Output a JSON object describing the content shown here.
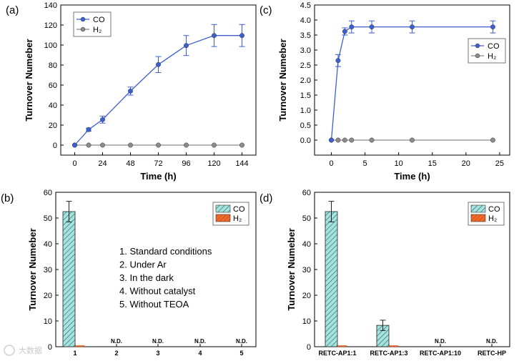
{
  "chart_data": [
    {
      "panel": "(a)",
      "type": "line",
      "xlabel": "Time (h)",
      "ylabel": "Turnover Numeber",
      "xlim": [
        -12,
        156
      ],
      "ylim": [
        -10,
        140
      ],
      "xticks": [
        0,
        24,
        48,
        72,
        96,
        120,
        144
      ],
      "yticks": [
        0,
        20,
        40,
        60,
        80,
        100,
        120,
        140
      ],
      "legend_position": "top-left",
      "grid": false,
      "series": [
        {
          "name": "CO",
          "color": "#3c5fd1",
          "x": [
            0,
            12,
            24,
            48,
            72,
            96,
            120,
            144
          ],
          "y": [
            0,
            15.5,
            25.5,
            54,
            80.5,
            99.5,
            109.5,
            109.5
          ],
          "err": [
            0,
            1.5,
            3.5,
            4,
            8,
            10,
            11,
            11
          ]
        },
        {
          "name": "H₂",
          "color": "#8c8c8c",
          "x": [
            0,
            12,
            24,
            48,
            72,
            96,
            120,
            144
          ],
          "y": [
            0,
            0,
            0,
            0,
            0,
            0,
            0,
            0
          ]
        }
      ]
    },
    {
      "panel": "(b)",
      "type": "bar",
      "xlabel": "",
      "ylabel": "Turnover Numeber",
      "ylim": [
        0,
        60
      ],
      "yticks": [
        0,
        10,
        20,
        30,
        40,
        50,
        60
      ],
      "categories": [
        "1",
        "2",
        "3",
        "4",
        "5"
      ],
      "legend_position": "top-right",
      "series": [
        {
          "name": "CO",
          "values": [
            52.5,
            0,
            0,
            0,
            0
          ],
          "err": [
            4,
            0,
            0,
            0,
            0
          ]
        },
        {
          "name": "H₂",
          "values": [
            0.3,
            0,
            0,
            0,
            0
          ]
        }
      ],
      "annotations": [
        "N.D.",
        "N.D.",
        "N.D.",
        "N.D."
      ],
      "conditions": [
        "1.   Standard conditions",
        "2.   Under Ar",
        "3.   In the dark",
        "4.   Without catalyst",
        "5.   Without TEOA"
      ]
    },
    {
      "panel": "(c)",
      "type": "line",
      "xlabel": "Time (h)",
      "ylabel": "Turnover Numeber",
      "xlim": [
        -2.5,
        26.5
      ],
      "ylim": [
        -0.5,
        4.5
      ],
      "xticks": [
        0,
        5,
        10,
        15,
        20,
        25
      ],
      "yticks": [
        0.0,
        0.5,
        1.0,
        1.5,
        2.0,
        2.5,
        3.0,
        3.5,
        4.0,
        4.5
      ],
      "legend_position": "right",
      "grid": false,
      "series": [
        {
          "name": "CO",
          "color": "#3c5fd1",
          "x": [
            0,
            1,
            2,
            3,
            6,
            12,
            24
          ],
          "y": [
            0,
            2.65,
            3.62,
            3.77,
            3.77,
            3.77,
            3.77
          ],
          "err": [
            0,
            0.2,
            0.12,
            0.2,
            0.2,
            0.2,
            0.2
          ]
        },
        {
          "name": "H₂",
          "color": "#8c8c8c",
          "x": [
            0,
            1,
            2,
            3,
            6,
            12,
            24
          ],
          "y": [
            0,
            0,
            0,
            0,
            0,
            0,
            0
          ]
        }
      ]
    },
    {
      "panel": "(d)",
      "type": "bar",
      "xlabel": "",
      "ylabel": "Turnover Numeber",
      "ylim": [
        0,
        60
      ],
      "yticks": [
        0,
        10,
        20,
        30,
        40,
        50,
        60
      ],
      "categories": [
        "RETC-AP1:1",
        "RETC-AP1:3",
        "RETC-AP1:10",
        "RETC-HP"
      ],
      "legend_position": "top-right",
      "series": [
        {
          "name": "CO",
          "values": [
            52.5,
            8.3,
            0,
            0
          ],
          "err": [
            4,
            2,
            0,
            0
          ]
        },
        {
          "name": "H₂",
          "values": [
            0.3,
            0.3,
            0,
            0
          ]
        }
      ],
      "annotations": [
        "N.D.",
        "N.D."
      ]
    }
  ],
  "colors": {
    "co_line": "#3c5fd1",
    "h2_line": "#8c8c8c",
    "co_bar_fill": "#a8e2de",
    "co_bar_hatch": "#1f6f6b",
    "h2_bar_fill": "#f26b2a",
    "h2_bar_hatch": "#b33a0c"
  },
  "watermark": "大数据"
}
